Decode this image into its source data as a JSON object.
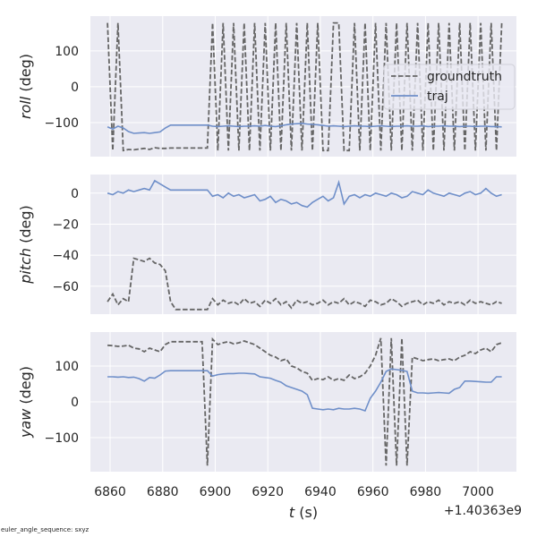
{
  "footnote": "euler_angle_sequence: sxyz",
  "chart_data": [
    {
      "type": "line",
      "ylabel_var": "roll",
      "ylabel_unit": " (deg)",
      "ylim": [
        -195,
        197
      ],
      "yticks": [
        -100,
        0,
        100
      ],
      "xlim": [
        6852.5,
        7014.6
      ],
      "xticks": [
        6860,
        6880,
        6900,
        6920,
        6940,
        6960,
        6980,
        7000
      ],
      "grid": true,
      "legend": {
        "placement": "right",
        "entries": [
          "groundtruth",
          "traj"
        ]
      },
      "series": [
        {
          "name": "groundtruth",
          "style": "dashed",
          "color": "#666666",
          "values": [
            178,
            -178,
            178,
            -178,
            -175,
            -176,
            -174,
            -172,
            -175,
            -170,
            -172,
            -172,
            -171,
            -171,
            -171,
            -171,
            -171,
            -171,
            -171,
            -171,
            178,
            -178,
            178,
            -178,
            178,
            -178,
            178,
            -178,
            178,
            -178,
            178,
            -178,
            178,
            -178,
            178,
            -178,
            178,
            -178,
            178,
            -178,
            178,
            -178,
            -178,
            178,
            178,
            -178,
            -178,
            178,
            -178,
            178,
            -178,
            178,
            -178,
            178,
            -178,
            178,
            -178,
            178,
            -178,
            178,
            -178,
            178,
            -178,
            178,
            -178,
            178,
            -178,
            178,
            -178,
            178,
            -178,
            178,
            -178,
            178,
            -178,
            178
          ]
        },
        {
          "name": "traj",
          "style": "solid",
          "color": "#6f8fc9",
          "values": [
            -112,
            -118,
            -110,
            -115,
            -125,
            -130,
            -129,
            -128,
            -130,
            -128,
            -126,
            -115,
            -107,
            -107,
            -107,
            -107,
            -107,
            -107,
            -107,
            -107,
            -110,
            -111,
            -110,
            -109,
            -110,
            -111,
            -110,
            -110,
            -109,
            -110,
            -108,
            -110,
            -111,
            -109,
            -106,
            -104,
            -103,
            -102,
            -104,
            -105,
            -106,
            -108,
            -110,
            -109,
            -110,
            -111,
            -110,
            -109,
            -110,
            -110,
            -111,
            -110,
            -109,
            -110,
            -111,
            -110,
            -110,
            -109,
            -110,
            -110,
            -109,
            -111,
            -110,
            -110,
            -109,
            -110,
            -110,
            -111,
            -110,
            -110,
            -111,
            -110,
            -110,
            -111,
            -111,
            -112
          ]
        }
      ]
    },
    {
      "type": "line",
      "ylabel_var": "pitch",
      "ylabel_unit": " (deg)",
      "ylim": [
        -78,
        12
      ],
      "yticks": [
        -60,
        -40,
        -20,
        0
      ],
      "xlim": [
        6852.5,
        7014.6
      ],
      "xticks": [
        6860,
        6880,
        6900,
        6920,
        6940,
        6960,
        6980,
        7000
      ],
      "grid": true,
      "series": [
        {
          "name": "groundtruth",
          "style": "dashed",
          "color": "#666666",
          "values": [
            -70,
            -65,
            -72,
            -68,
            -70,
            -42,
            -43,
            -44,
            -42,
            -45,
            -46,
            -50,
            -70,
            -75,
            -75,
            -75,
            -75,
            -75,
            -75,
            -75,
            -68,
            -72,
            -69,
            -71,
            -70,
            -72,
            -68,
            -71,
            -70,
            -73,
            -69,
            -71,
            -68,
            -72,
            -70,
            -74,
            -69,
            -71,
            -70,
            -72,
            -71,
            -69,
            -72,
            -70,
            -71,
            -68,
            -72,
            -70,
            -71,
            -73,
            -69,
            -70,
            -72,
            -71,
            -68,
            -70,
            -73,
            -71,
            -70,
            -69,
            -72,
            -70,
            -71,
            -69,
            -72,
            -70,
            -71,
            -70,
            -72,
            -69,
            -71,
            -70,
            -71,
            -72,
            -70,
            -71
          ]
        },
        {
          "name": "traj",
          "style": "solid",
          "color": "#6f8fc9",
          "values": [
            0,
            -1,
            1,
            0,
            2,
            1,
            2,
            3,
            2,
            8,
            6,
            4,
            2,
            2,
            2,
            2,
            2,
            2,
            2,
            2,
            -2,
            -1,
            -3,
            0,
            -2,
            -1,
            -3,
            -2,
            -1,
            -5,
            -4,
            -2,
            -6,
            -4,
            -5,
            -7,
            -6,
            -8,
            -9,
            -6,
            -4,
            -2,
            -5,
            -3,
            7,
            -7,
            -2,
            -1,
            -3,
            -1,
            -2,
            0,
            -1,
            -2,
            0,
            -1,
            -3,
            -2,
            1,
            0,
            -1,
            2,
            0,
            -1,
            -2,
            0,
            -1,
            -2,
            0,
            1,
            -1,
            0,
            3,
            0,
            -2,
            -1
          ]
        }
      ]
    },
    {
      "type": "line",
      "ylabel_var": "yaw",
      "ylabel_unit": " (deg)",
      "ylim": [
        -195,
        195
      ],
      "yticks": [
        -100,
        0,
        100
      ],
      "xlim": [
        6852.5,
        7014.6
      ],
      "xticks": [
        6860,
        6880,
        6900,
        6920,
        6940,
        6960,
        6980,
        7000
      ],
      "xlabel_var": "t",
      "xlabel_unit": " (s)",
      "x_offset_label": "+1.40363e9",
      "grid": true,
      "series": [
        {
          "name": "groundtruth",
          "style": "dashed",
          "color": "#666666",
          "values": [
            158,
            157,
            155,
            156,
            158,
            150,
            148,
            140,
            150,
            145,
            140,
            160,
            168,
            168,
            168,
            168,
            168,
            168,
            168,
            -178,
            175,
            160,
            165,
            168,
            162,
            165,
            170,
            165,
            160,
            150,
            140,
            130,
            125,
            115,
            120,
            100,
            95,
            85,
            80,
            60,
            65,
            62,
            70,
            60,
            65,
            60,
            75,
            65,
            70,
            80,
            100,
            130,
            178,
            -178,
            178,
            -178,
            178,
            -178,
            125,
            120,
            115,
            118,
            120,
            115,
            118,
            120,
            115,
            125,
            130,
            140,
            135,
            145,
            150,
            140,
            160,
            165
          ]
        },
        {
          "name": "traj",
          "style": "solid",
          "color": "#6f8fc9",
          "values": [
            70,
            70,
            69,
            70,
            68,
            69,
            65,
            58,
            68,
            66,
            75,
            86,
            87,
            87,
            87,
            87,
            87,
            87,
            87,
            87,
            72,
            76,
            78,
            79,
            79,
            80,
            80,
            79,
            78,
            70,
            68,
            66,
            60,
            55,
            45,
            40,
            35,
            30,
            20,
            -18,
            -20,
            -22,
            -20,
            -22,
            -18,
            -20,
            -20,
            -18,
            -20,
            -25,
            10,
            30,
            55,
            85,
            92,
            90,
            88,
            85,
            30,
            25,
            25,
            24,
            25,
            26,
            25,
            24,
            35,
            40,
            58,
            58,
            57,
            56,
            55,
            55,
            70,
            70
          ]
        }
      ]
    }
  ],
  "x": [
    6859,
    6861,
    6863,
    6865,
    6867,
    6869,
    6871,
    6873,
    6875,
    6877,
    6879,
    6881,
    6883,
    6885,
    6887,
    6889,
    6891,
    6893,
    6895,
    6897,
    6899,
    6901,
    6903,
    6905,
    6907,
    6909,
    6911,
    6913,
    6915,
    6917,
    6919,
    6921,
    6923,
    6925,
    6927,
    6929,
    6931,
    6933,
    6935,
    6937,
    6939,
    6941,
    6943,
    6945,
    6947,
    6949,
    6951,
    6953,
    6955,
    6957,
    6959,
    6961,
    6963,
    6965,
    6967,
    6969,
    6971,
    6973,
    6975,
    6977,
    6979,
    6981,
    6983,
    6985,
    6987,
    6989,
    6991,
    6993,
    6995,
    6997,
    6999,
    7001,
    7003,
    7005,
    7007,
    7009
  ],
  "colors": {
    "axes_bg": "#eaeaf2",
    "grid": "#ffffff",
    "text": "#262626"
  }
}
